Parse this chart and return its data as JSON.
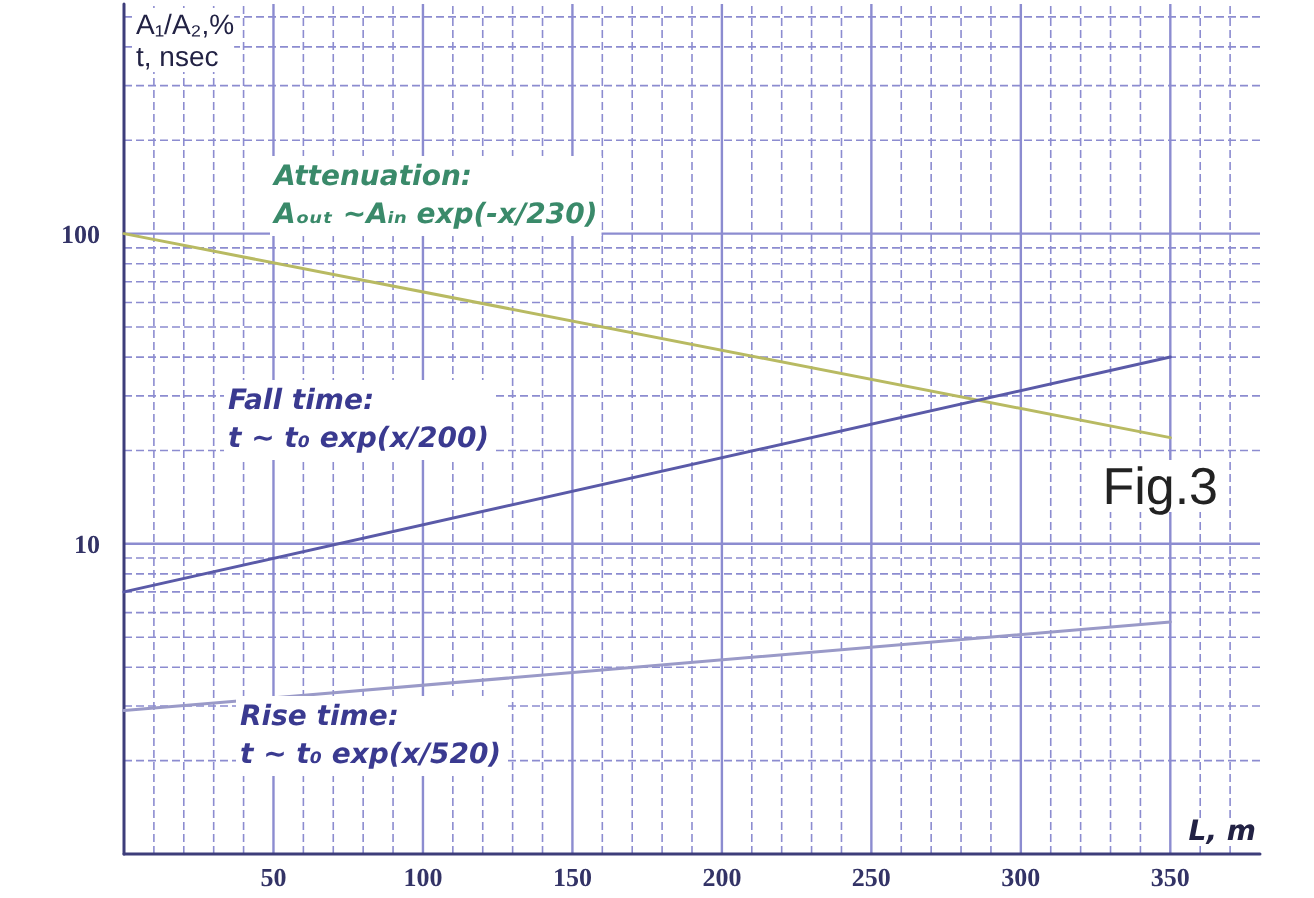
{
  "chart_data": {
    "type": "line",
    "xlabel": "L, m",
    "ylabel": "A₁/A₂,%\nt, nsec",
    "x": [
      0,
      350
    ],
    "series": [
      {
        "color": "#b8ba62",
        "values": [
          100,
          22
        ]
      },
      {
        "color": "#5a5aa8",
        "values": [
          7,
          40
        ]
      },
      {
        "color": "#9a9ac8",
        "values": [
          2.9,
          5.6
        ]
      }
    ],
    "annotations": [
      "Attenuation:\nAₒᵤₜ ~Aᵢₙ exp(-x/230)",
      "Fall time:\nt ~ t₀ exp(x/200)",
      "Rise time:\nt ~ t₀ exp(x/520)",
      "Fig.3"
    ],
    "log": "y",
    "xlim": [
      0,
      380
    ],
    "ylim": [
      1,
      550
    ],
    "xticks": [
      {
        "value": 10,
        "label": null
      },
      {
        "value": 20,
        "label": null
      },
      {
        "value": 30,
        "label": null
      },
      {
        "value": 40,
        "label": null
      },
      50,
      {
        "value": 60,
        "label": null
      },
      {
        "value": 70,
        "label": null
      },
      {
        "value": 80,
        "label": null
      },
      {
        "value": 90,
        "label": null
      },
      100,
      {
        "value": 110,
        "label": null
      },
      {
        "value": 120,
        "label": null
      },
      {
        "value": 130,
        "label": null
      },
      {
        "value": 140,
        "label": null
      },
      150,
      {
        "value": 160,
        "label": null
      },
      {
        "value": 170,
        "label": null
      },
      {
        "value": 180,
        "label": null
      },
      {
        "value": 190,
        "label": null
      },
      200,
      {
        "value": 210,
        "label": null
      },
      {
        "value": 220,
        "label": null
      },
      {
        "value": 230,
        "label": null
      },
      {
        "value": 240,
        "label": null
      },
      250,
      {
        "value": 260,
        "label": null
      },
      {
        "value": 270,
        "label": null
      },
      {
        "value": 280,
        "label": null
      },
      {
        "value": 290,
        "label": null
      },
      300,
      {
        "value": 310,
        "label": null
      },
      {
        "value": 320,
        "label": null
      },
      {
        "value": 330,
        "label": null
      },
      {
        "value": 340,
        "label": null
      },
      350,
      {
        "value": 360,
        "label": null
      },
      {
        "value": 370,
        "label": null
      }
    ],
    "yticks": [
      {
        "value": 2,
        "label": null
      },
      {
        "value": 3,
        "label": null
      },
      {
        "value": 4,
        "label": null
      },
      {
        "value": 5,
        "label": null
      },
      {
        "value": 6,
        "label": null
      },
      {
        "value": 7,
        "label": null
      },
      {
        "value": 8,
        "label": null
      },
      {
        "value": 9,
        "label": null
      },
      10,
      {
        "value": 20,
        "label": null
      },
      {
        "value": 30,
        "label": null
      },
      {
        "value": 40,
        "label": null
      },
      {
        "value": 50,
        "label": null
      },
      {
        "value": 60,
        "label": null
      },
      {
        "value": 70,
        "label": null
      },
      {
        "value": 80,
        "label": null
      },
      {
        "value": 90,
        "label": null
      },
      100,
      {
        "value": 200,
        "label": null
      },
      {
        "value": 300,
        "label": null
      },
      {
        "value": 400,
        "label": null
      },
      {
        "value": 500,
        "label": null
      }
    ],
    "grid": true,
    "marker": "none",
    "line_style": "solid"
  }
}
